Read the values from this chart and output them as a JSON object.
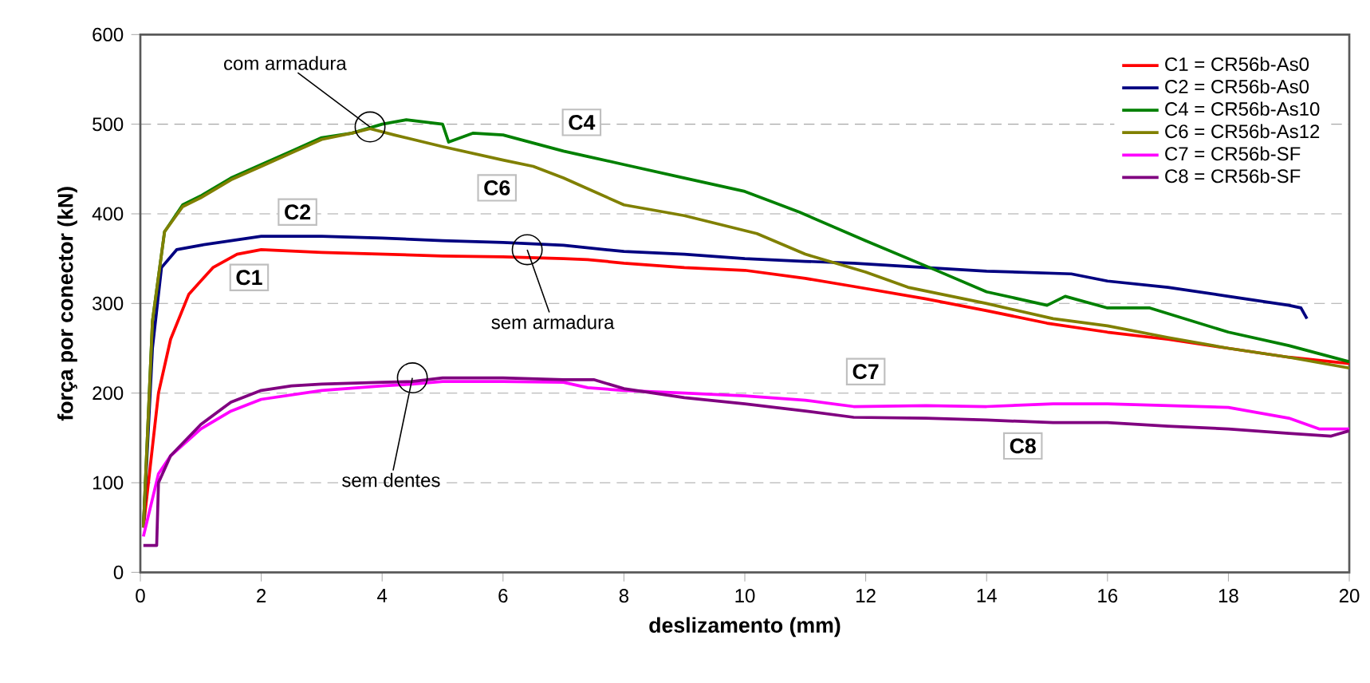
{
  "chart_data": {
    "type": "line",
    "xlabel": "deslizamento (mm)",
    "ylabel": "força por conector (kN)",
    "xlim": [
      0,
      20
    ],
    "ylim": [
      0,
      600
    ],
    "xticks": [
      0,
      2,
      4,
      6,
      8,
      10,
      12,
      14,
      16,
      18,
      20
    ],
    "yticks": [
      0,
      100,
      200,
      300,
      400,
      500,
      600
    ],
    "grid": "y",
    "legend": "top right",
    "marker": "none",
    "line_style": "solid",
    "series": [
      {
        "name": "C1 = CR56b-As0",
        "color": "#ff0000",
        "x": [
          0.05,
          0.3,
          0.5,
          0.8,
          1.2,
          1.6,
          2,
          3,
          4,
          5,
          6,
          7,
          7.4,
          8,
          9,
          10,
          11,
          11.8,
          13,
          14,
          15,
          16,
          17,
          18,
          19,
          20
        ],
        "values": [
          50,
          200,
          260,
          310,
          340,
          355,
          360,
          357,
          355,
          353,
          352,
          350,
          349,
          345,
          340,
          337,
          328,
          319,
          305,
          292,
          278,
          268,
          260,
          250,
          240,
          233
        ]
      },
      {
        "name": "C2 = CR56b-As0",
        "color": "#000080",
        "x": [
          0.05,
          0.2,
          0.35,
          0.6,
          1,
          2,
          3,
          4,
          5,
          6,
          7,
          8,
          9,
          10,
          11,
          11.8,
          13,
          14,
          15.4,
          16,
          17,
          18,
          19,
          19.2,
          19.3
        ],
        "values": [
          50,
          250,
          340,
          360,
          365,
          375,
          375,
          373,
          370,
          368,
          365,
          358,
          355,
          350,
          347,
          345,
          340,
          336,
          333,
          325,
          318,
          308,
          298,
          295,
          283
        ]
      },
      {
        "name": "C4 = CR56b-As10",
        "color": "#008000",
        "x": [
          0.05,
          0.2,
          0.4,
          0.7,
          1,
          1.5,
          2,
          2.5,
          3,
          3.5,
          4,
          4.4,
          5,
          5.1,
          5.5,
          6,
          7,
          7.4,
          8,
          9,
          10,
          10.9,
          12,
          13.2,
          14,
          15,
          15.3,
          16,
          16.7,
          18,
          19,
          20
        ],
        "values": [
          50,
          280,
          380,
          410,
          420,
          440,
          455,
          470,
          485,
          490,
          500,
          505,
          500,
          480,
          490,
          488,
          470,
          464,
          455,
          440,
          425,
          402,
          370,
          336,
          313,
          298,
          308,
          295,
          295,
          268,
          253,
          235
        ]
      },
      {
        "name": "C6 = CR56b-As12",
        "color": "#808000",
        "x": [
          0.05,
          0.2,
          0.4,
          0.7,
          1,
          1.5,
          2,
          2.5,
          3,
          3.5,
          3.8,
          4.2,
          5,
          6,
          6.5,
          7,
          7.4,
          8,
          9,
          10.2,
          11,
          12,
          12.7,
          14,
          15.1,
          16,
          17,
          18,
          19,
          20
        ],
        "values": [
          50,
          280,
          380,
          408,
          418,
          438,
          453,
          468,
          483,
          490,
          495,
          488,
          475,
          460,
          453,
          440,
          428,
          410,
          398,
          378,
          355,
          335,
          318,
          300,
          283,
          275,
          262,
          250,
          240,
          228
        ]
      },
      {
        "name": "C7 = CR56b-SF",
        "color": "#ff00ff",
        "x": [
          0.05,
          0.3,
          0.5,
          1,
          1.5,
          2,
          3,
          4,
          4.5,
          5,
          6,
          7,
          7.4,
          8,
          9,
          10,
          11,
          11.8,
          13,
          14,
          15.1,
          16,
          17,
          18,
          19,
          19.5,
          20
        ],
        "values": [
          40,
          110,
          130,
          160,
          180,
          193,
          203,
          208,
          210,
          213,
          213,
          212,
          206,
          203,
          200,
          197,
          192,
          185,
          186,
          185,
          188,
          188,
          186,
          184,
          172,
          160,
          160
        ]
      },
      {
        "name": "C8 = CR56b-SF",
        "color": "#800080",
        "x": [
          0.05,
          0.27,
          0.3,
          0.5,
          1,
          1.5,
          2,
          2.5,
          3,
          4,
          4.5,
          5,
          6,
          7,
          7.5,
          8,
          9,
          10,
          11,
          11.8,
          13,
          14,
          15.1,
          16,
          17,
          18,
          19,
          19.7,
          20
        ],
        "values": [
          30,
          30,
          100,
          130,
          165,
          190,
          203,
          208,
          210,
          212,
          213,
          217,
          217,
          215,
          215,
          205,
          195,
          188,
          180,
          173,
          172,
          170,
          167,
          167,
          163,
          160,
          155,
          152,
          158
        ]
      }
    ],
    "annotations": [
      {
        "text": "com armadura",
        "x": 3.8,
        "y": 497
      },
      {
        "text": "sem armadura",
        "x": 6.4,
        "y": 360
      },
      {
        "text": "sem dentes",
        "x": 4.5,
        "y": 217
      },
      {
        "text": "C1",
        "x": 1.8,
        "y": 329
      },
      {
        "text": "C2",
        "x": 2.6,
        "y": 402
      },
      {
        "text": "C4",
        "x": 7.3,
        "y": 502
      },
      {
        "text": "C6",
        "x": 5.9,
        "y": 429
      },
      {
        "text": "C7",
        "x": 12,
        "y": 224
      },
      {
        "text": "C8",
        "x": 14.6,
        "y": 141
      }
    ]
  }
}
